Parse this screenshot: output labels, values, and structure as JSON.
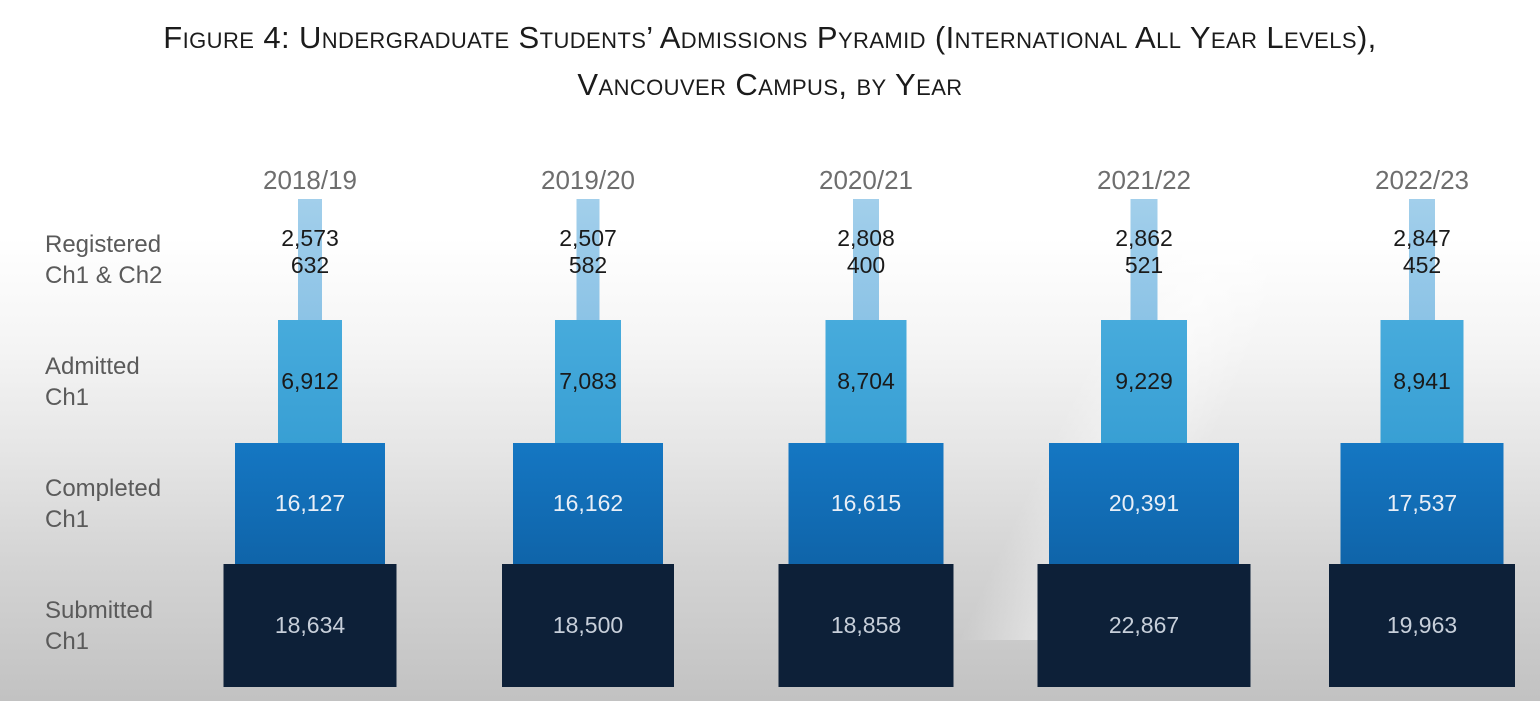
{
  "title": {
    "line1": "Figure 4: Undergraduate Students’ Admissions Pyramid (International All Year Levels),",
    "line2": "Vancouver Campus, by Year"
  },
  "row_labels": [
    {
      "line1": "Registered",
      "line2": "Ch1 & Ch2"
    },
    {
      "line1": "Admitted",
      "line2": "Ch1"
    },
    {
      "line1": "Completed",
      "line2": "Ch1"
    },
    {
      "line1": "Submitted",
      "line2": "Ch1"
    }
  ],
  "colors": {
    "title_text": "#1b1b1b",
    "year_label": "#6e6e6e",
    "row_label": "#5a5a5a",
    "registered_bar": "#8cc3e6",
    "admitted_bar": "#389fd4",
    "completed_bar_top": "#1577c3",
    "completed_bar_bottom": "#0f64a9",
    "submitted_bar": "#0d2038",
    "number_dark": "#1a1a1a",
    "number_on_completed": "#e9eff7",
    "number_on_submitted": "#c7cfda"
  },
  "chart_data": {
    "type": "bar",
    "subtype": "admissions-pyramid",
    "title": "Figure 4: Undergraduate Students’ Admissions Pyramid (International All Year Levels), Vancouver Campus, by Year",
    "categories": [
      "2018/19",
      "2019/20",
      "2020/21",
      "2021/22",
      "2022/23"
    ],
    "series": [
      {
        "name": "Registered Ch1",
        "values": [
          2573,
          2507,
          2808,
          2862,
          2847
        ]
      },
      {
        "name": "Registered Ch2",
        "values": [
          632,
          582,
          400,
          521,
          452
        ]
      },
      {
        "name": "Admitted Ch1",
        "values": [
          6912,
          7083,
          8704,
          9229,
          8941
        ]
      },
      {
        "name": "Completed Ch1",
        "values": [
          16127,
          16162,
          16615,
          20391,
          17537
        ]
      },
      {
        "name": "Submitted Ch1",
        "values": [
          18634,
          18500,
          18858,
          22867,
          19963
        ]
      }
    ],
    "tier_labels": [
      "Registered Ch1 & Ch2",
      "Admitted Ch1",
      "Completed Ch1",
      "Submitted Ch1"
    ],
    "bar_width_proportional_to_value": true,
    "legend": "none",
    "grid": false,
    "axes": "none"
  }
}
